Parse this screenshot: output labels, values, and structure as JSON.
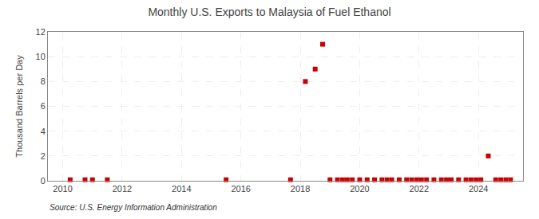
{
  "chart_data": {
    "type": "scatter",
    "title": "Monthly U.S. Exports to Malaysia of Fuel Ethanol",
    "ylabel": "Thousand Barrels per Day",
    "annotations": [
      "Source: U.S. Energy Information Administration"
    ],
    "color": "#cc0000",
    "marker": "square",
    "grid": true,
    "xlim": [
      2009.5,
      2025.5
    ],
    "ylim": [
      0,
      12
    ],
    "xticks": [
      2010,
      2012,
      2014,
      2016,
      2018,
      2020,
      2022,
      2024
    ],
    "yticks": [
      0,
      2,
      4,
      6,
      8,
      10,
      12
    ],
    "x": [
      2010.25,
      2010.75,
      2011.0,
      2011.5,
      2015.5,
      2017.67,
      2018.17,
      2018.5,
      2018.75,
      2019.0,
      2019.25,
      2019.42,
      2019.58,
      2019.75,
      2020.0,
      2020.25,
      2020.5,
      2020.75,
      2020.92,
      2021.08,
      2021.33,
      2021.58,
      2021.75,
      2021.92,
      2022.08,
      2022.25,
      2022.5,
      2022.75,
      2022.92,
      2023.08,
      2023.33,
      2023.58,
      2023.75,
      2023.92,
      2024.08,
      2024.33,
      2024.58,
      2024.75,
      2024.92,
      2025.08
    ],
    "values": [
      0.08,
      0.08,
      0.08,
      0.08,
      0.08,
      0.08,
      8.0,
      9.0,
      11.0,
      0.08,
      0.08,
      0.08,
      0.08,
      0.08,
      0.08,
      0.08,
      0.08,
      0.08,
      0.08,
      0.08,
      0.08,
      0.08,
      0.08,
      0.08,
      0.08,
      0.08,
      0.08,
      0.08,
      0.08,
      0.08,
      0.08,
      0.08,
      0.08,
      0.08,
      0.08,
      2.0,
      0.08,
      0.08,
      0.08,
      0.08
    ]
  }
}
